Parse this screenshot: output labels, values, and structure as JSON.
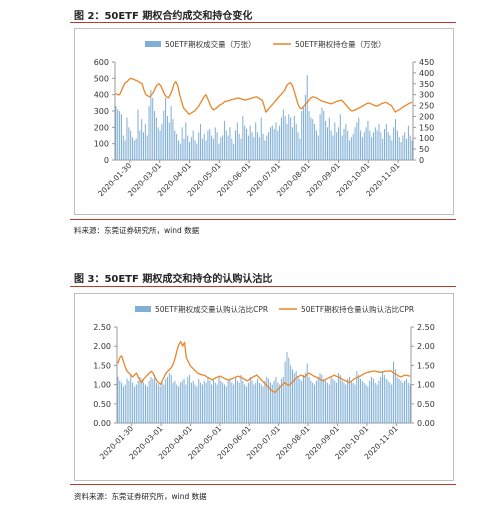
{
  "figure1": {
    "caption": "图 2：50ETF 期权合约成交和持仓变化",
    "source": "料来源：东莞证券研究所，wind 数据",
    "chart_data": {
      "type": "bar+line",
      "series": [
        {
          "name": "50ETF期权成交量（万张）",
          "kind": "bar",
          "axis": "left",
          "color": "#7faed6",
          "values": [
            330,
            310,
            300,
            280,
            150,
            120,
            260,
            200,
            180,
            140,
            120,
            130,
            310,
            180,
            250,
            170,
            220,
            150,
            330,
            430,
            380,
            300,
            260,
            200,
            180,
            220,
            300,
            380,
            270,
            230,
            330,
            250,
            180,
            160,
            120,
            100,
            200,
            130,
            230,
            150,
            110,
            140,
            180,
            120,
            100,
            170,
            220,
            130,
            160,
            120,
            180,
            190,
            150,
            130,
            200,
            170,
            100,
            140,
            150,
            240,
            180,
            150,
            200,
            130,
            100,
            180,
            230,
            160,
            130,
            270,
            210,
            190,
            150,
            210,
            170,
            140,
            230,
            170,
            140,
            260,
            160,
            120,
            150,
            170,
            200,
            210,
            190,
            230,
            180,
            210,
            260,
            310,
            270,
            220,
            280,
            260,
            200,
            270,
            220,
            170,
            130,
            300,
            320,
            400,
            520,
            300,
            260,
            250,
            220,
            180,
            150,
            280,
            320,
            300,
            240,
            200,
            260,
            180,
            150,
            230,
            170,
            200,
            280,
            150,
            190,
            220,
            180,
            120,
            140,
            160,
            200,
            230,
            260,
            180,
            140,
            170,
            200,
            240,
            180,
            140,
            170,
            200,
            180,
            220,
            170,
            130,
            190,
            220,
            170,
            150,
            120,
            200,
            250,
            180,
            140,
            110,
            150,
            170,
            130,
            210,
            150,
            120
          ]
        },
        {
          "name": "50ETF期权持仓量（万张）",
          "kind": "line",
          "axis": "right",
          "color": "#e8862a",
          "values": [
            305,
            300,
            300,
            320,
            340,
            355,
            360,
            370,
            375,
            372,
            368,
            365,
            360,
            355,
            350,
            320,
            300,
            295,
            290,
            300,
            310,
            330,
            345,
            350,
            340,
            320,
            300,
            290,
            285,
            300,
            320,
            350,
            360,
            340,
            300,
            270,
            240,
            230,
            220,
            210,
            215,
            220,
            225,
            235,
            245,
            260,
            275,
            290,
            300,
            280,
            260,
            240,
            230,
            235,
            240,
            250,
            255,
            260,
            268,
            270,
            272,
            275,
            278,
            280,
            282,
            285,
            283,
            280,
            278,
            275,
            278,
            280,
            283,
            286,
            288,
            290,
            285,
            280,
            275,
            250,
            220,
            230,
            240,
            250,
            260,
            270,
            280,
            290,
            300,
            310,
            320,
            340,
            350,
            355,
            345,
            320,
            290,
            260,
            240,
            235,
            245,
            255,
            265,
            275,
            285,
            290,
            288,
            285,
            280,
            275,
            270,
            268,
            265,
            262,
            260,
            258,
            262,
            266,
            270,
            272,
            275,
            270,
            260,
            250,
            240,
            230,
            225,
            228,
            232,
            236,
            240,
            245,
            250,
            255,
            260,
            262,
            258,
            255,
            250,
            248,
            250,
            255,
            260,
            262,
            265,
            260,
            255,
            250,
            235,
            220,
            225,
            230,
            236,
            242,
            248,
            252,
            258,
            262,
            265
          ]
        }
      ],
      "x_tick_labels": [
        "2020-01-30",
        "2020-03-01",
        "2020-04-01",
        "2020-05-01",
        "2020-06-01",
        "2020-07-01",
        "2020-08-01",
        "2020-09-01",
        "2020-10-01",
        "2020-11-01"
      ],
      "y_left": {
        "ylim": [
          0,
          600
        ],
        "ticks": [
          "0",
          "100",
          "200",
          "300",
          "400",
          "500",
          "600"
        ]
      },
      "y_right": {
        "ylim": [
          0,
          450
        ],
        "ticks": [
          "0",
          "50",
          "100",
          "150",
          "200",
          "250",
          "300",
          "350",
          "400",
          "450"
        ]
      },
      "legend_position": "top-center",
      "grid": false
    }
  },
  "figure2": {
    "caption": "图 3：50ETF 期权成交和持仓的认购认沽比",
    "source": "资料来源：东莞证券研究所，wind 数据",
    "chart_data": {
      "type": "bar+line",
      "series": [
        {
          "name": "50ETF期权成交量认购认沽比CPR",
          "kind": "bar",
          "axis": "left",
          "color": "#7faed6",
          "values": [
            1.2,
            1.1,
            1.05,
            0.95,
            1.0,
            1.15,
            1.1,
            1.25,
            1.05,
            0.95,
            1.0,
            1.1,
            1.2,
            1.15,
            1.05,
            1.0,
            0.95,
            1.1,
            1.2,
            1.15,
            1.25,
            1.05,
            1.0,
            0.95,
            1.1,
            1.0,
            1.15,
            1.2,
            1.3,
            1.25,
            1.05,
            1.1,
            1.0,
            0.95,
            1.05,
            1.1,
            1.15,
            1.0,
            1.2,
            1.25,
            1.05,
            1.1,
            1.0,
            0.95,
            1.15,
            1.05,
            1.0,
            1.1,
            1.05,
            1.2,
            1.1,
            1.0,
            1.15,
            1.05,
            1.0,
            1.2,
            1.1,
            1.05,
            1.0,
            0.95,
            1.1,
            1.15,
            1.05,
            1.0,
            1.2,
            1.1,
            1.05,
            1.25,
            1.1,
            1.0,
            0.95,
            1.05,
            1.2,
            1.1,
            1.0,
            1.05,
            1.15,
            1.05,
            1.0,
            0.95,
            1.1,
            1.2,
            1.15,
            1.05,
            1.0,
            1.1,
            1.2,
            1.05,
            1.0,
            1.15,
            1.2,
            1.6,
            1.85,
            1.7,
            1.5,
            1.4,
            1.3,
            1.35,
            1.2,
            1.15,
            1.1,
            1.25,
            1.3,
            1.55,
            1.2,
            1.1,
            1.05,
            1.0,
            1.1,
            1.2,
            1.3,
            1.25,
            1.15,
            1.1,
            1.05,
            1.0,
            1.2,
            1.15,
            1.1,
            1.05,
            1.3,
            1.25,
            1.1,
            1.05,
            1.0,
            1.15,
            1.2,
            1.1,
            1.05,
            1.0,
            1.35,
            1.25,
            1.15,
            1.1,
            1.05,
            1.0,
            0.95,
            1.1,
            1.2,
            1.15,
            1.05,
            1.0,
            1.1,
            1.2,
            1.35,
            1.25,
            1.15,
            1.1,
            1.05,
            1.0,
            1.6,
            1.4,
            1.2,
            1.15,
            1.1,
            1.05,
            1.1,
            1.15,
            1.05,
            1.0
          ]
        },
        {
          "name": "50ETF期权持仓量认购认沽比CPR",
          "kind": "line",
          "axis": "right",
          "color": "#e8862a",
          "values": [
            1.55,
            1.7,
            1.75,
            1.6,
            1.45,
            1.35,
            1.3,
            1.25,
            1.2,
            1.25,
            1.3,
            1.2,
            1.1,
            1.05,
            1.15,
            1.2,
            1.25,
            1.3,
            1.35,
            1.3,
            1.2,
            1.1,
            1.05,
            1.0,
            1.1,
            1.2,
            1.3,
            1.35,
            1.4,
            1.45,
            1.55,
            1.7,
            1.9,
            2.05,
            2.12,
            2.0,
            2.1,
            1.7,
            1.6,
            1.5,
            1.45,
            1.4,
            1.35,
            1.3,
            1.28,
            1.26,
            1.25,
            1.24,
            1.2,
            1.18,
            1.15,
            1.12,
            1.15,
            1.18,
            1.2,
            1.22,
            1.2,
            1.18,
            1.15,
            1.13,
            1.12,
            1.14,
            1.16,
            1.18,
            1.2,
            1.22,
            1.2,
            1.18,
            1.15,
            1.12,
            1.1,
            1.13,
            1.16,
            1.2,
            1.22,
            1.25,
            1.2,
            1.15,
            1.1,
            1.05,
            1.0,
            0.95,
            0.9,
            0.85,
            0.82,
            0.8,
            0.85,
            0.9,
            0.95,
            1.0,
            1.05,
            1.02,
            0.98,
            1.0,
            1.05,
            1.1,
            1.15,
            1.2,
            1.22,
            1.25,
            1.22,
            1.2,
            1.25,
            1.3,
            1.28,
            1.25,
            1.22,
            1.2,
            1.18,
            1.15,
            1.12,
            1.1,
            1.12,
            1.15,
            1.18,
            1.2,
            1.22,
            1.25,
            1.22,
            1.2,
            1.18,
            1.15,
            1.12,
            1.1,
            1.08,
            1.05,
            1.08,
            1.12,
            1.15,
            1.18,
            1.2,
            1.22,
            1.25,
            1.28,
            1.3,
            1.32,
            1.33,
            1.34,
            1.35,
            1.35,
            1.34,
            1.33,
            1.32,
            1.33,
            1.34,
            1.35,
            1.35,
            1.36,
            1.35,
            1.3,
            1.28,
            1.25,
            1.22,
            1.2,
            1.22,
            1.25,
            1.24,
            1.23,
            1.22
          ]
        }
      ],
      "x_tick_labels": [
        "2020-01-30",
        "2020-03-01",
        "2020-04-01",
        "2020-05-01",
        "2020-06-01",
        "2020-07-01",
        "2020-08-01",
        "2020-09-01",
        "2020-10-01",
        "2020-11-01"
      ],
      "y_left": {
        "ylim": [
          0,
          2.5
        ],
        "ticks": [
          "0.00",
          "0.50",
          "1.00",
          "1.50",
          "2.00",
          "2.50"
        ]
      },
      "y_right": {
        "ylim": [
          0,
          2.5
        ],
        "ticks": [
          "0.00",
          "0.50",
          "1.00",
          "1.50",
          "2.00",
          "2.50"
        ]
      },
      "legend_position": "top-center",
      "grid": false
    }
  }
}
